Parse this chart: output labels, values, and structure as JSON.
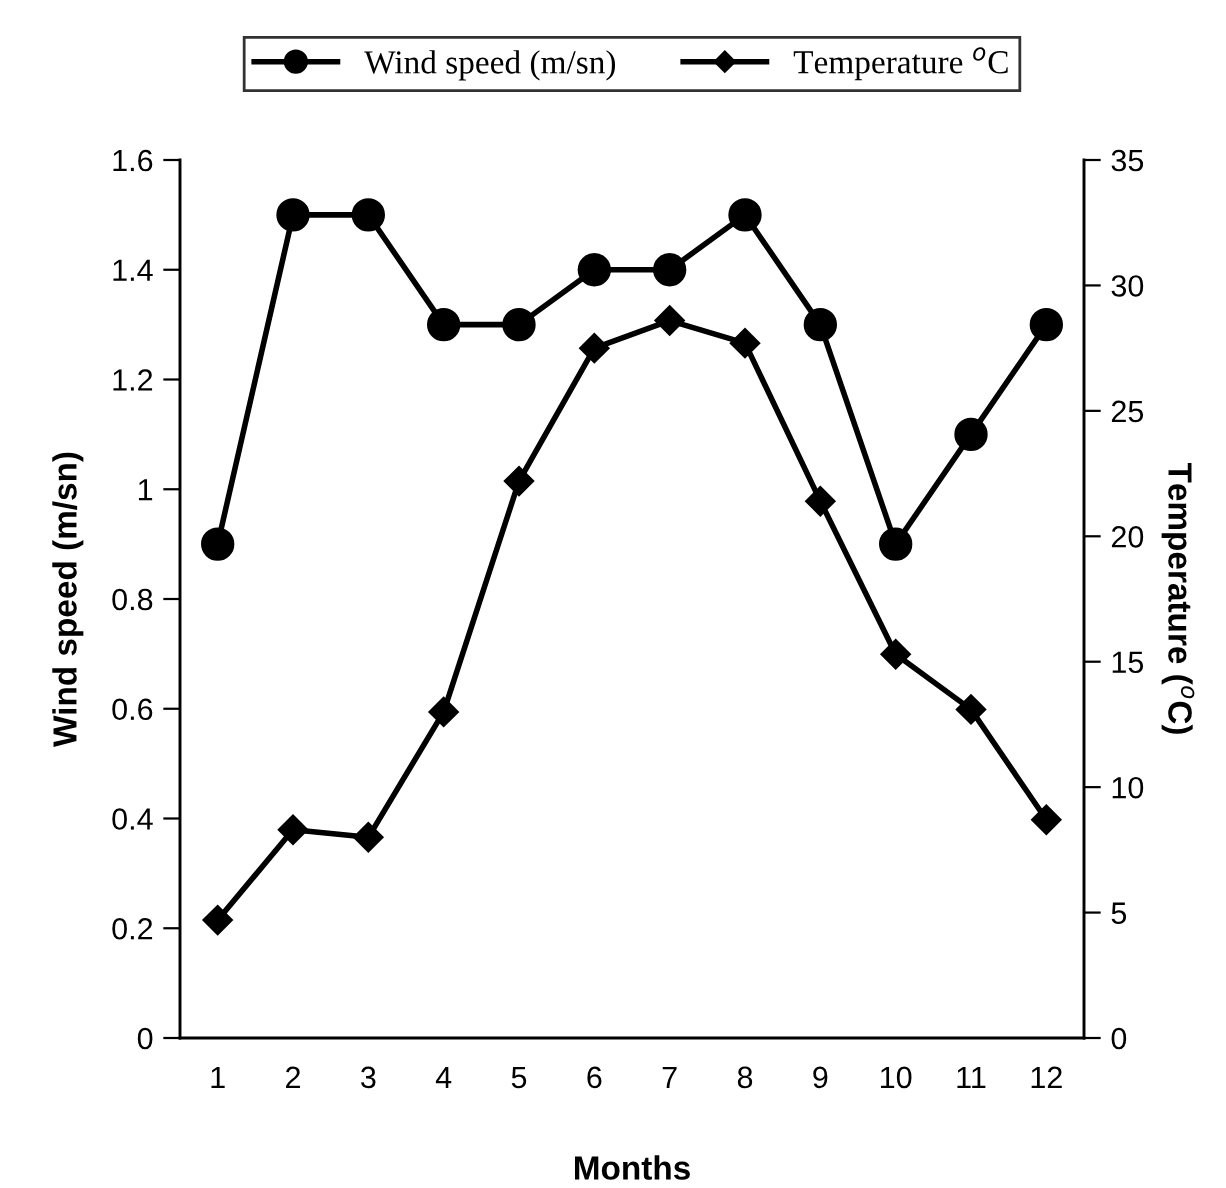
{
  "chart_data": {
    "type": "line",
    "xlabel": "Months",
    "ylabel": "Wind speed (m/sn)",
    "y2label": "Temperature ($^{o}$C)",
    "categories": [
      "1",
      "2",
      "3",
      "4",
      "5",
      "6",
      "7",
      "8",
      "9",
      "10",
      "11",
      "12"
    ],
    "series": [
      {
        "name": "Wind speed (m/sn)",
        "color": "#000000",
        "marker": "circle",
        "values": [
          0.9,
          1.5,
          1.5,
          1.3,
          1.3,
          1.4,
          1.4,
          1.5,
          1.3,
          0.9,
          1.1,
          1.3
        ]
      },
      {
        "name": "Temperature $^{o}$C",
        "color": "#000000",
        "marker": "diamond",
        "axis": "y2",
        "values": [
          4.7,
          8.3,
          8.0,
          13.0,
          22.2,
          27.5,
          28.6,
          27.7,
          21.4,
          15.3,
          13.1,
          8.7
        ]
      }
    ],
    "ylim": [
      0,
      1.6
    ],
    "yticks": [
      0,
      0.2,
      0.4,
      0.6,
      0.8,
      1,
      1.2,
      1.4,
      1.6
    ],
    "y2lim": [
      0,
      35
    ],
    "y2ticks": [
      0,
      5,
      10,
      15,
      20,
      25,
      30,
      35
    ],
    "grid": false,
    "legend": "top",
    "line_style": "solid"
  }
}
